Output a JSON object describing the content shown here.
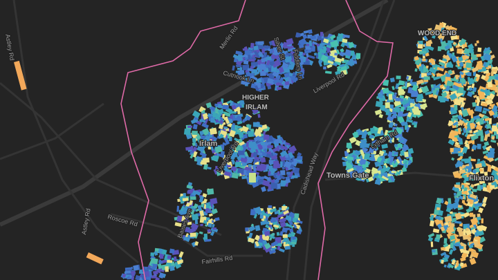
{
  "labels": {
    "astley_rd_north": "Astley Rd",
    "merlin_rd": "Merlin Rd",
    "silver_st": "Silver St",
    "cutnook_ln": "Cutnook Ln",
    "higher_irlam": [
      "HIGHER",
      "IRLAM"
    ],
    "fiddlers_ln": "Fiddlers Ln",
    "liverpool_rd_east": "Liverpool Rd",
    "irlam": "Irlam",
    "liverpool_rd_west": "Liverpool Rd",
    "baines_ave": "Baines Ave",
    "roscoe_rd": "Roscoe Rd",
    "astley_rd_south": "Astley Rd",
    "fairhills_rd": "Fairhills Rd",
    "cadishead_way": "Cadishead Way",
    "lytham_rd": "Lytham Rd",
    "towns_gate": "Towns Gate",
    "wood_end": "WOOD END",
    "flixton": "Flixton"
  }
}
